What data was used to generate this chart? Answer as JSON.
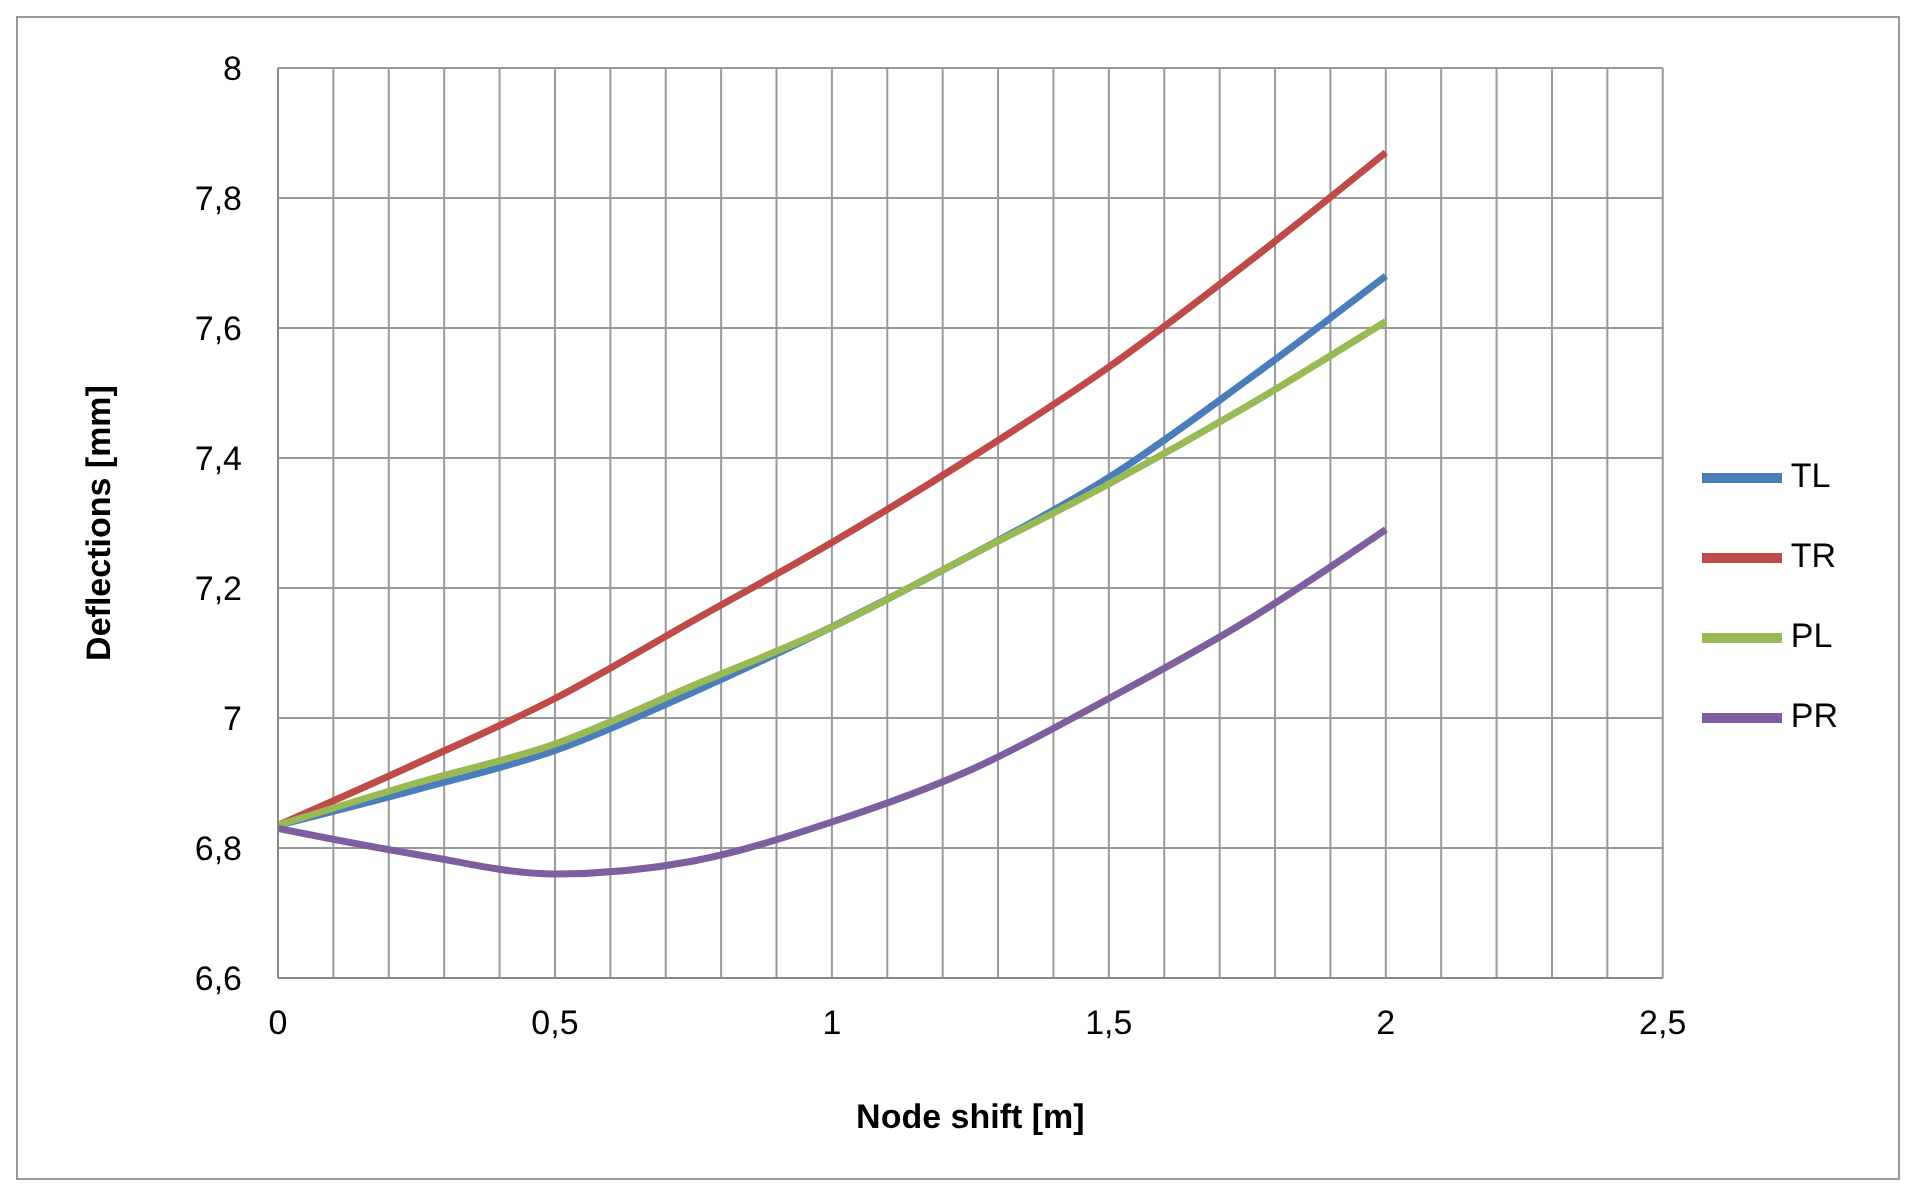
{
  "chart_data": {
    "type": "line",
    "xlabel": "Node shift [m]",
    "ylabel": "Deflections [mm]",
    "x": [
      0,
      0.25,
      0.5,
      0.75,
      1,
      1.25,
      1.5,
      1.75,
      2
    ],
    "series": [
      {
        "name": "TL",
        "color": "#4a7ebb",
        "values": [
          6.835,
          6.89,
          6.95,
          7.04,
          7.14,
          7.25,
          7.37,
          7.52,
          7.68
        ]
      },
      {
        "name": "TR",
        "color": "#be4b48",
        "values": [
          6.835,
          6.93,
          7.03,
          7.15,
          7.27,
          7.4,
          7.54,
          7.7,
          7.87
        ]
      },
      {
        "name": "PL",
        "color": "#98b954",
        "values": [
          6.835,
          6.9,
          6.96,
          7.05,
          7.14,
          7.25,
          7.36,
          7.48,
          7.61
        ]
      },
      {
        "name": "PR",
        "color": "#7d5fa0",
        "values": [
          6.83,
          6.79,
          6.76,
          6.78,
          6.84,
          6.92,
          7.03,
          7.15,
          7.29
        ]
      }
    ],
    "xlim": [
      0,
      2.5
    ],
    "xticks": [
      0,
      {
        "value": 0.1,
        "label": null
      },
      {
        "value": 0.2,
        "label": null
      },
      {
        "value": 0.3,
        "label": null
      },
      {
        "value": 0.4,
        "label": null
      },
      {
        "value": 0.5,
        "label": "0,5"
      },
      {
        "value": 0.6,
        "label": null
      },
      {
        "value": 0.7,
        "label": null
      },
      {
        "value": 0.8,
        "label": null
      },
      {
        "value": 0.9,
        "label": null
      },
      1,
      {
        "value": 1.1,
        "label": null
      },
      {
        "value": 1.2,
        "label": null
      },
      {
        "value": 1.3,
        "label": null
      },
      {
        "value": 1.4,
        "label": null
      },
      {
        "value": 1.5,
        "label": "1,5"
      },
      {
        "value": 1.6,
        "label": null
      },
      {
        "value": 1.7,
        "label": null
      },
      {
        "value": 1.8,
        "label": null
      },
      {
        "value": 1.9,
        "label": null
      },
      2,
      {
        "value": 2.1,
        "label": null
      },
      {
        "value": 2.2,
        "label": null
      },
      {
        "value": 2.3,
        "label": null
      },
      {
        "value": 2.4,
        "label": null
      },
      {
        "value": 2.5,
        "label": "2,5"
      }
    ],
    "ylim": [
      6.6,
      8
    ],
    "yticks": [
      {
        "value": 6.6,
        "label": "6,6"
      },
      {
        "value": 6.8,
        "label": "6,8"
      },
      7,
      {
        "value": 7.2,
        "label": "7,2"
      },
      {
        "value": 7.4,
        "label": "7,4"
      },
      {
        "value": 7.6,
        "label": "7,6"
      },
      {
        "value": 7.8,
        "label": "7,8"
      },
      8
    ],
    "grid": true,
    "legend": "right",
    "marker": "none",
    "line_style": "solid"
  }
}
